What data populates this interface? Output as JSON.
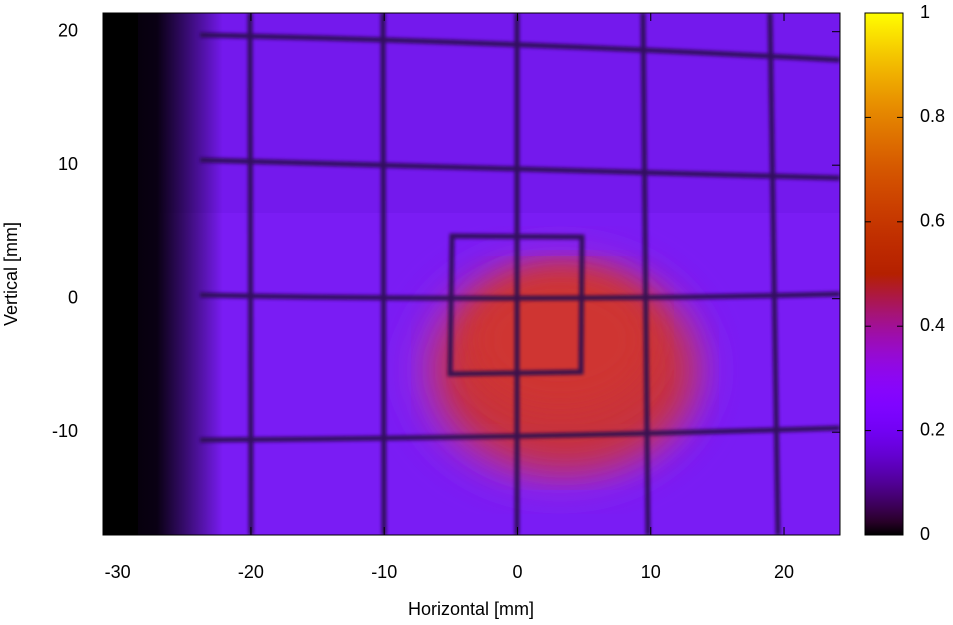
{
  "chart_data": {
    "type": "heatmap",
    "xlabel": "Horizontal [mm]",
    "ylabel": "Vertical [mm]",
    "xlim": [
      -31.1,
      24.2
    ],
    "ylim": [
      -17.7,
      21.4
    ],
    "xticks": [
      -30,
      -20,
      -10,
      0,
      10,
      20
    ],
    "yticks": [
      -10,
      0,
      10,
      20
    ],
    "colorbar": {
      "lim": [
        0,
        1
      ],
      "ticks": [
        0,
        0.2,
        0.4,
        0.6,
        0.8,
        1
      ]
    }
  }
}
